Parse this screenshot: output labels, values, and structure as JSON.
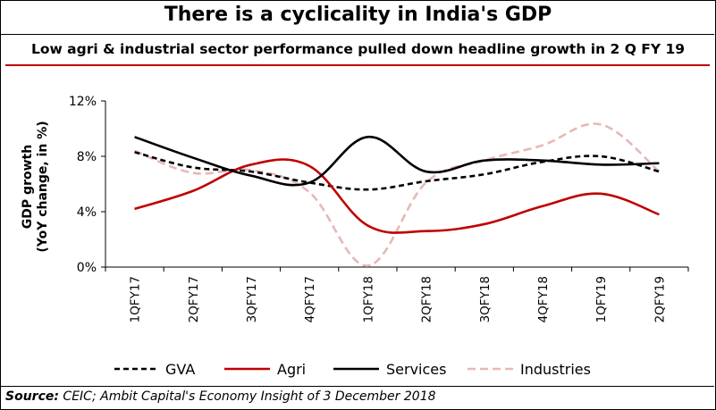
{
  "title": "There is a cyclicality in India's GDP",
  "subtitle": "Low agri & industrial sector performance pulled down headline growth in 2 Q FY 19",
  "source_label": "Source:",
  "source_text": "CEIC; Ambit Capital's Economy Insight of 3 December 2018",
  "chart_data": {
    "type": "line",
    "title": "There is a cyclicality in India's GDP",
    "ylabel_line1": "GDP growth",
    "ylabel_line2": "(YoY change, in %)",
    "categories": [
      "1QFY17",
      "2QFY17",
      "3QFY17",
      "4QFY17",
      "1QFY18",
      "2QFY18",
      "3QFY18",
      "4QFY18",
      "1QFY19",
      "2QFY19"
    ],
    "ylim": [
      0,
      12
    ],
    "yticks": [
      0,
      4,
      8,
      12
    ],
    "ytick_labels": [
      "0%",
      "4%",
      "8%",
      "12%"
    ],
    "legend_position": "bottom",
    "grid": false,
    "series": [
      {
        "name": "GVA",
        "color": "#000000",
        "dash": "6,4",
        "values": [
          8.3,
          7.2,
          6.9,
          6.1,
          5.6,
          6.2,
          6.7,
          7.6,
          8.0,
          6.9
        ]
      },
      {
        "name": "Agri",
        "color": "#c00000",
        "dash": "",
        "values": [
          4.2,
          5.5,
          7.4,
          7.3,
          3.0,
          2.6,
          3.1,
          4.4,
          5.3,
          3.8
        ]
      },
      {
        "name": "Services",
        "color": "#000000",
        "dash": "",
        "values": [
          9.4,
          7.9,
          6.6,
          6.1,
          9.4,
          6.9,
          7.7,
          7.7,
          7.4,
          7.5
        ]
      },
      {
        "name": "Industries",
        "color": "#e6b8b7",
        "dash": "9,5",
        "values": [
          8.4,
          6.8,
          7.0,
          5.4,
          0.1,
          6.1,
          7.7,
          8.8,
          10.3,
          6.9
        ]
      }
    ]
  }
}
